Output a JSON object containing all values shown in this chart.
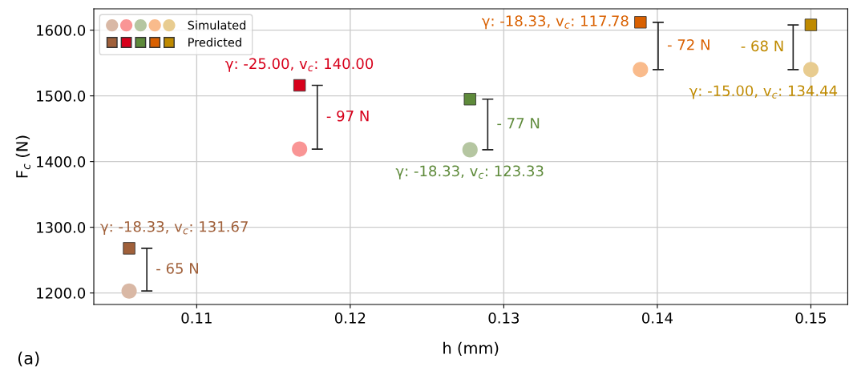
{
  "chart_data": {
    "type": "scatter",
    "xlabel": "h (mm)",
    "ylabel": "F$_{c}$ (N)",
    "x": [
      0.1056,
      0.1167,
      0.1278,
      0.1389,
      0.15
    ],
    "series": [
      {
        "name": "Simulated",
        "type": "scatter",
        "marker": "circle",
        "colors": [
          "#d9b8a5",
          "#f99595",
          "#b5c6a1",
          "#f9bb8c",
          "#e8cc90"
        ],
        "values": [
          1203,
          1419,
          1418,
          1540,
          1540
        ]
      },
      {
        "name": "Predicted",
        "type": "scatter",
        "marker": "square",
        "colors": [
          "#a0603a",
          "#d7001b",
          "#5e8a3a",
          "#d96000",
          "#bf8a00"
        ],
        "values": [
          1268,
          1516,
          1495,
          1612,
          1608
        ]
      }
    ],
    "xlim": [
      0.1033,
      0.1524
    ],
    "ylim": [
      1182.5,
      1632.5
    ],
    "xticks": [
      0.11,
      0.12,
      0.13,
      0.14,
      0.15
    ],
    "yticks": [
      {
        "value": 1200,
        "label": "1200.0"
      },
      {
        "value": 1300,
        "label": "1300.0"
      },
      {
        "value": 1400,
        "label": "1400.0"
      },
      {
        "value": 1500,
        "label": "1500.0"
      },
      {
        "value": 1600,
        "label": "1600.0"
      }
    ],
    "grid": true,
    "legend": "top left",
    "annotations": [
      {
        "text": "γ: -18.33, v$_{c}$: 131.67",
        "x": 0.1056,
        "y": 1268
      },
      {
        "text": "γ: -25.00, v$_{c}$: 140.00",
        "x": 0.1167,
        "y": 1516
      },
      {
        "text": "γ: -18.33, v$_{c}$: 123.33",
        "x": 0.1278,
        "y": 1418
      },
      {
        "text": "γ: -18.33, v$_{c}$: 117.78",
        "x": 0.1389,
        "y": 1612
      },
      {
        "text": "γ: -15.00, v$_{c}$: 134.44",
        "x": 0.15,
        "y": 1540
      },
      "- 65 N",
      "- 97 N",
      "- 77 N",
      "- 72 N",
      "- 68 N",
      "(a)"
    ]
  }
}
